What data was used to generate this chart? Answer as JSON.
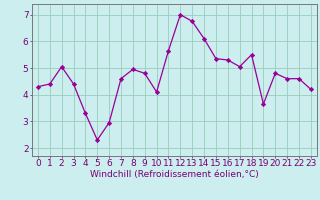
{
  "x": [
    0,
    1,
    2,
    3,
    4,
    5,
    6,
    7,
    8,
    9,
    10,
    11,
    12,
    13,
    14,
    15,
    16,
    17,
    18,
    19,
    20,
    21,
    22,
    23
  ],
  "y": [
    4.3,
    4.4,
    5.05,
    4.4,
    3.3,
    2.3,
    2.95,
    4.6,
    4.95,
    4.8,
    4.1,
    5.65,
    7.0,
    6.75,
    6.1,
    5.35,
    5.3,
    5.05,
    5.5,
    3.65,
    4.8,
    4.6,
    4.6,
    4.2
  ],
  "line_color": "#990099",
  "marker": "D",
  "marker_size": 2.2,
  "bg_color": "#cceeee",
  "grid_color": "#99ccbb",
  "xlabel": "Windchill (Refroidissement éolien,°C)",
  "xlim": [
    -0.5,
    23.5
  ],
  "ylim": [
    1.7,
    7.4
  ],
  "xticks": [
    0,
    1,
    2,
    3,
    4,
    5,
    6,
    7,
    8,
    9,
    10,
    11,
    12,
    13,
    14,
    15,
    16,
    17,
    18,
    19,
    20,
    21,
    22,
    23
  ],
  "yticks": [
    2,
    3,
    4,
    5,
    6,
    7
  ],
  "xlabel_fontsize": 6.5,
  "tick_fontsize": 6.5,
  "tick_color": "#770077",
  "axis_color": "#777777",
  "linewidth": 0.9
}
